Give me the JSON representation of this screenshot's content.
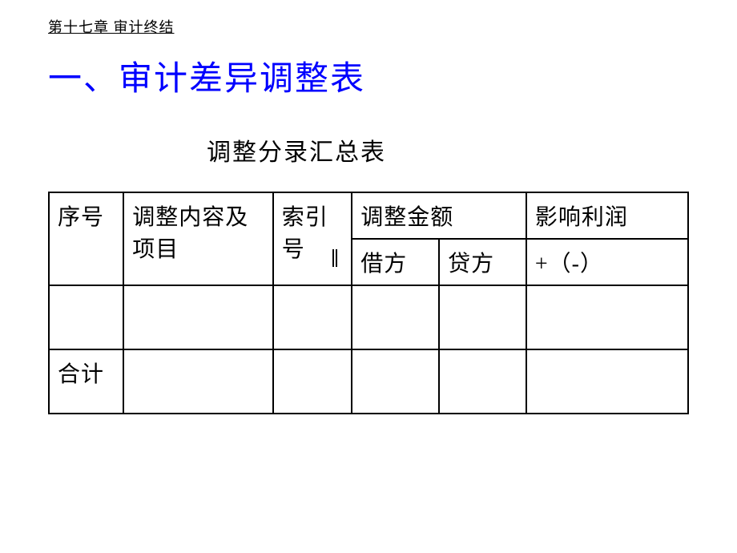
{
  "chapter": {
    "title": "第十七章 审计终结"
  },
  "section": {
    "heading": "一、审计差异调整表"
  },
  "table": {
    "title": "调整分录汇总表",
    "headers": {
      "sequence": "序号",
      "content": "调整内容及项目",
      "index": "索引号",
      "amount": "调整金额",
      "debit": "借方",
      "credit": "贷方",
      "profit_col1": "影响利润",
      "profit_col2": "+（-）"
    },
    "rows": {
      "total_label": "合计"
    },
    "styling": {
      "border_color": "#000000",
      "border_width": 2,
      "header_fontsize": 28,
      "text_color": "#000000"
    }
  },
  "colors": {
    "heading_color": "#0000ff",
    "text_color": "#000000",
    "background": "#ffffff"
  }
}
